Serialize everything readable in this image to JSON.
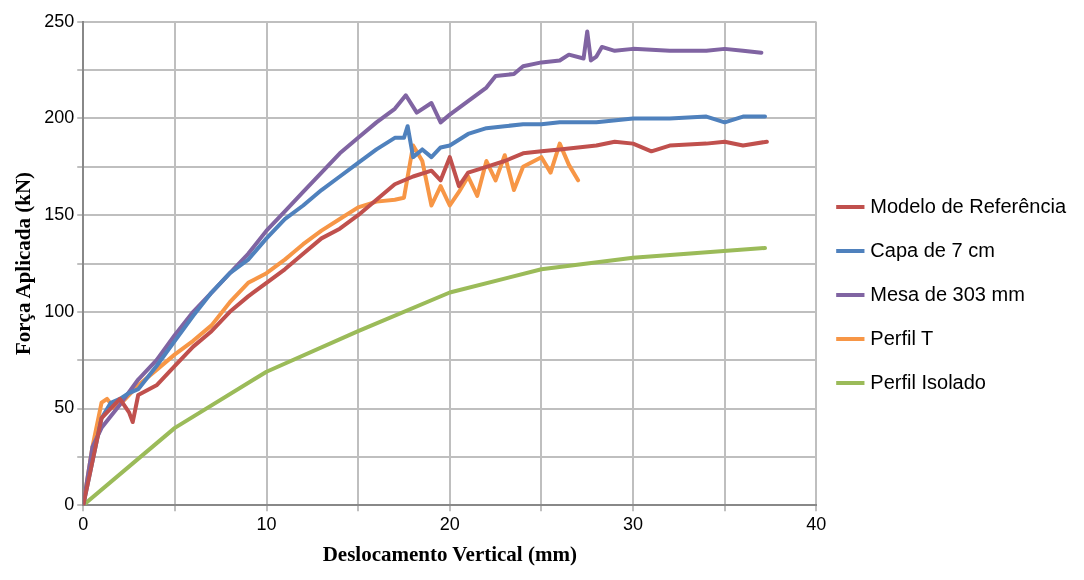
{
  "chart_data": {
    "type": "line",
    "xlabel": "Deslocamento Vertical (mm)",
    "ylabel": "Força Aplicada (kN)",
    "xlim": [
      0,
      40
    ],
    "ylim": [
      0,
      250
    ],
    "xticks": [
      0,
      {
        "value": 5,
        "label": null
      },
      10,
      {
        "value": 15,
        "label": null
      },
      20,
      {
        "value": 25,
        "label": null
      },
      30,
      {
        "value": 35,
        "label": null
      },
      40
    ],
    "yticks": [
      0,
      {
        "value": 25,
        "label": null
      },
      50,
      {
        "value": 75,
        "label": null
      },
      100,
      {
        "value": 125,
        "label": null
      },
      150,
      {
        "value": 175,
        "label": null
      },
      200,
      {
        "value": 225,
        "label": null
      },
      250
    ],
    "grid": true,
    "legend": "right",
    "marker": "none",
    "line_style": "solid",
    "series": [
      {
        "name": "Modelo de Referência",
        "color": "#c0504d",
        "x": [
          0,
          1,
          2,
          2.5,
          2.7,
          3,
          4,
          5,
          6,
          7,
          8,
          9,
          10,
          11,
          12,
          13,
          14,
          15,
          16,
          17,
          18,
          19,
          19.5,
          20,
          20.5,
          21,
          22,
          23,
          24,
          25,
          26,
          27,
          28,
          29,
          30,
          31,
          32,
          34,
          35,
          36,
          37.3
        ],
        "values": [
          0,
          45,
          55,
          48,
          43,
          57,
          62,
          72,
          82,
          90,
          100,
          108,
          115,
          122,
          130,
          138,
          143,
          150,
          158,
          166,
          170,
          173,
          168,
          180,
          165,
          172,
          175,
          178,
          182,
          183,
          184,
          185,
          186,
          188,
          187,
          183,
          186,
          187,
          188,
          186,
          188
        ]
      },
      {
        "name": "Capa de 7 cm",
        "color": "#4f81bd",
        "x": [
          0,
          1,
          1.5,
          2,
          2.5,
          3,
          4,
          5,
          6,
          7,
          8,
          9,
          10,
          11,
          12,
          13,
          14,
          15,
          16,
          17,
          17.5,
          17.7,
          18,
          18.5,
          19,
          19.5,
          20,
          21,
          22,
          23,
          24,
          25,
          26,
          28,
          30,
          32,
          34,
          35,
          36,
          37.2
        ],
        "values": [
          0,
          45,
          53,
          55,
          58,
          60,
          72,
          85,
          98,
          110,
          120,
          127,
          138,
          148,
          155,
          163,
          170,
          177,
          184,
          190,
          190,
          196,
          180,
          184,
          180,
          185,
          186,
          192,
          195,
          196,
          197,
          197,
          198,
          198,
          200,
          200,
          201,
          198,
          201,
          201
        ]
      },
      {
        "name": "Mesa de 303 mm",
        "color": "#8064a2",
        "x": [
          0,
          0.5,
          1,
          2,
          3,
          4,
          5,
          6,
          7,
          8,
          9,
          10,
          11,
          12,
          13,
          14,
          15,
          16,
          17,
          17.6,
          18.2,
          19,
          19.5,
          20,
          22,
          22.5,
          23.5,
          24,
          25,
          26,
          26.5,
          27.3,
          27.5,
          27.7,
          28,
          28.3,
          29,
          30,
          32,
          34,
          35,
          36,
          37
        ],
        "values": [
          0,
          30,
          40,
          52,
          65,
          75,
          88,
          100,
          110,
          120,
          130,
          142,
          152,
          162,
          172,
          182,
          190,
          198,
          205,
          212,
          203,
          208,
          198,
          202,
          216,
          222,
          223,
          227,
          229,
          230,
          233,
          231,
          245,
          230,
          232,
          237,
          235,
          236,
          235,
          235,
          236,
          235,
          234
        ]
      },
      {
        "name": "Perfil T",
        "color": "#f79646",
        "x": [
          0,
          0.5,
          1,
          1.3,
          1.7,
          2,
          3,
          4,
          5,
          6,
          7,
          8,
          9,
          10,
          11,
          12,
          13,
          14,
          15,
          16,
          17,
          17.5,
          18,
          18.5,
          19,
          19.5,
          20,
          20.5,
          21,
          21.5,
          22,
          22.5,
          23,
          23.5,
          24,
          25,
          25.5,
          26,
          26.5,
          27
        ],
        "values": [
          0,
          30,
          53,
          55,
          50,
          52,
          62,
          70,
          78,
          85,
          93,
          105,
          115,
          120,
          127,
          135,
          142,
          148,
          154,
          157,
          158,
          159,
          186,
          178,
          155,
          165,
          155,
          162,
          170,
          160,
          178,
          168,
          181,
          163,
          175,
          180,
          172,
          187,
          176,
          168
        ]
      },
      {
        "name": "Perfil Isolado",
        "color": "#9bbb59",
        "x": [
          0,
          5,
          10,
          15,
          20,
          25,
          30,
          37.2
        ],
        "values": [
          0,
          40,
          69,
          90,
          110,
          122,
          128,
          133
        ]
      }
    ]
  }
}
